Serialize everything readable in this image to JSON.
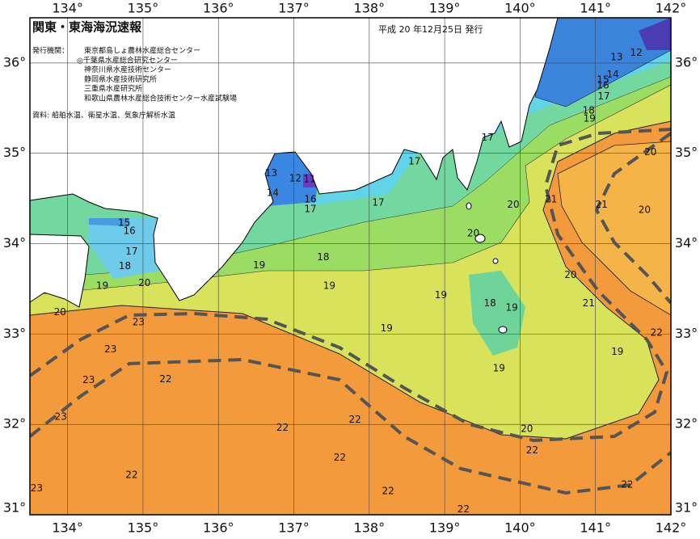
{
  "header": {
    "title": "関東・東海海況速報",
    "issued": "平成 20 年12月25日 発行",
    "issuers_label": "発行機関：",
    "issuers": [
      "東京都島しょ農林水産総合センター",
      "◎千葉県水産総合研究センター",
      "神奈川県水産技術センター",
      "静岡県水産技術研究所",
      "三重県水産研究所",
      "和歌山県農林水産総合技術センター水産試験場"
    ],
    "source": "資料: 船舶水温、衛星水温、気象庁解析水温"
  },
  "map": {
    "lon_range": [
      133.5,
      142
    ],
    "lat_range": [
      31,
      36.5
    ],
    "lon_ticks": [
      {
        "value": 134,
        "label": "134°"
      },
      {
        "value": 135,
        "label": "135°"
      },
      {
        "value": 136,
        "label": "136°"
      },
      {
        "value": 137,
        "label": "137°"
      },
      {
        "value": 138,
        "label": "138°"
      },
      {
        "value": 139,
        "label": "139°"
      },
      {
        "value": 140,
        "label": "140°"
      },
      {
        "value": 141,
        "label": "141°"
      },
      {
        "value": 142,
        "label": "142°"
      }
    ],
    "lat_ticks": [
      {
        "value": 31,
        "label": "31°"
      },
      {
        "value": 32,
        "label": "32°"
      },
      {
        "value": 33,
        "label": "33°"
      },
      {
        "value": 34,
        "label": "34°"
      },
      {
        "value": 35,
        "label": "35°"
      },
      {
        "value": 36,
        "label": "36°"
      }
    ],
    "contour_labels": [
      {
        "label": "12",
        "lon": 141.54,
        "lat": 36.11
      },
      {
        "label": "13",
        "lon": 141.28,
        "lat": 36.06
      },
      {
        "label": "14",
        "lon": 141.23,
        "lat": 35.87
      },
      {
        "label": "15",
        "lon": 141.1,
        "lat": 35.81
      },
      {
        "label": "16",
        "lon": 141.1,
        "lat": 35.75
      },
      {
        "label": "17",
        "lon": 141.11,
        "lat": 35.63
      },
      {
        "label": "18",
        "lon": 140.91,
        "lat": 35.47
      },
      {
        "label": "19",
        "lon": 140.92,
        "lat": 35.38
      },
      {
        "label": "17",
        "lon": 139.57,
        "lat": 35.17
      },
      {
        "label": "17",
        "lon": 138.6,
        "lat": 34.91
      },
      {
        "label": "13",
        "lon": 136.7,
        "lat": 34.78
      },
      {
        "label": "14",
        "lon": 136.72,
        "lat": 34.56
      },
      {
        "label": "12",
        "lon": 137.02,
        "lat": 34.72
      },
      {
        "label": "11",
        "lon": 137.21,
        "lat": 34.71
      },
      {
        "label": "16",
        "lon": 137.22,
        "lat": 34.49
      },
      {
        "label": "17",
        "lon": 137.22,
        "lat": 34.38
      },
      {
        "label": "17",
        "lon": 138.12,
        "lat": 34.45
      },
      {
        "label": "15",
        "lon": 134.75,
        "lat": 34.23
      },
      {
        "label": "16",
        "lon": 134.82,
        "lat": 34.14
      },
      {
        "label": "17",
        "lon": 134.85,
        "lat": 33.91
      },
      {
        "label": "18",
        "lon": 134.76,
        "lat": 33.75
      },
      {
        "label": "19",
        "lon": 134.46,
        "lat": 33.53
      },
      {
        "label": "20",
        "lon": 135.02,
        "lat": 33.56
      },
      {
        "label": "20",
        "lon": 133.9,
        "lat": 33.24
      },
      {
        "label": "23",
        "lon": 134.94,
        "lat": 33.13
      },
      {
        "label": "23",
        "lon": 134.57,
        "lat": 32.83
      },
      {
        "label": "23",
        "lon": 134.28,
        "lat": 32.49
      },
      {
        "label": "23",
        "lon": 133.91,
        "lat": 32.08
      },
      {
        "label": "23",
        "lon": 133.59,
        "lat": 31.29
      },
      {
        "label": "22",
        "lon": 135.3,
        "lat": 32.5
      },
      {
        "label": "22",
        "lon": 136.85,
        "lat": 31.96
      },
      {
        "label": "22",
        "lon": 137.61,
        "lat": 31.63
      },
      {
        "label": "22",
        "lon": 137.81,
        "lat": 32.05
      },
      {
        "label": "22",
        "lon": 134.85,
        "lat": 31.44
      },
      {
        "label": "22",
        "lon": 138.25,
        "lat": 31.26
      },
      {
        "label": "22",
        "lon": 139.25,
        "lat": 31.06
      },
      {
        "label": "22",
        "lon": 140.16,
        "lat": 31.71
      },
      {
        "label": "22",
        "lon": 141.42,
        "lat": 31.33
      },
      {
        "label": "22",
        "lon": 141.81,
        "lat": 33.01
      },
      {
        "label": "20",
        "lon": 140.09,
        "lat": 31.95
      },
      {
        "label": "19",
        "lon": 139.72,
        "lat": 32.62
      },
      {
        "label": "19",
        "lon": 138.23,
        "lat": 33.06
      },
      {
        "label": "19",
        "lon": 138.95,
        "lat": 33.43
      },
      {
        "label": "18",
        "lon": 139.6,
        "lat": 33.34
      },
      {
        "label": "19",
        "lon": 139.89,
        "lat": 33.29
      },
      {
        "label": "19",
        "lon": 137.47,
        "lat": 33.53
      },
      {
        "label": "18",
        "lon": 137.39,
        "lat": 33.85
      },
      {
        "label": "19",
        "lon": 136.54,
        "lat": 33.76
      },
      {
        "label": "20",
        "lon": 139.38,
        "lat": 34.11
      },
      {
        "label": "20",
        "lon": 139.91,
        "lat": 34.43
      },
      {
        "label": "21",
        "lon": 140.41,
        "lat": 34.49
      },
      {
        "label": "20",
        "lon": 140.67,
        "lat": 33.65
      },
      {
        "label": "21",
        "lon": 140.91,
        "lat": 33.34
      },
      {
        "label": "21",
        "lon": 141.08,
        "lat": 34.43
      },
      {
        "label": "20",
        "lon": 141.65,
        "lat": 34.37
      },
      {
        "label": "20",
        "lon": 141.73,
        "lat": 35.01
      },
      {
        "label": "19",
        "lon": 141.29,
        "lat": 32.8
      }
    ]
  }
}
